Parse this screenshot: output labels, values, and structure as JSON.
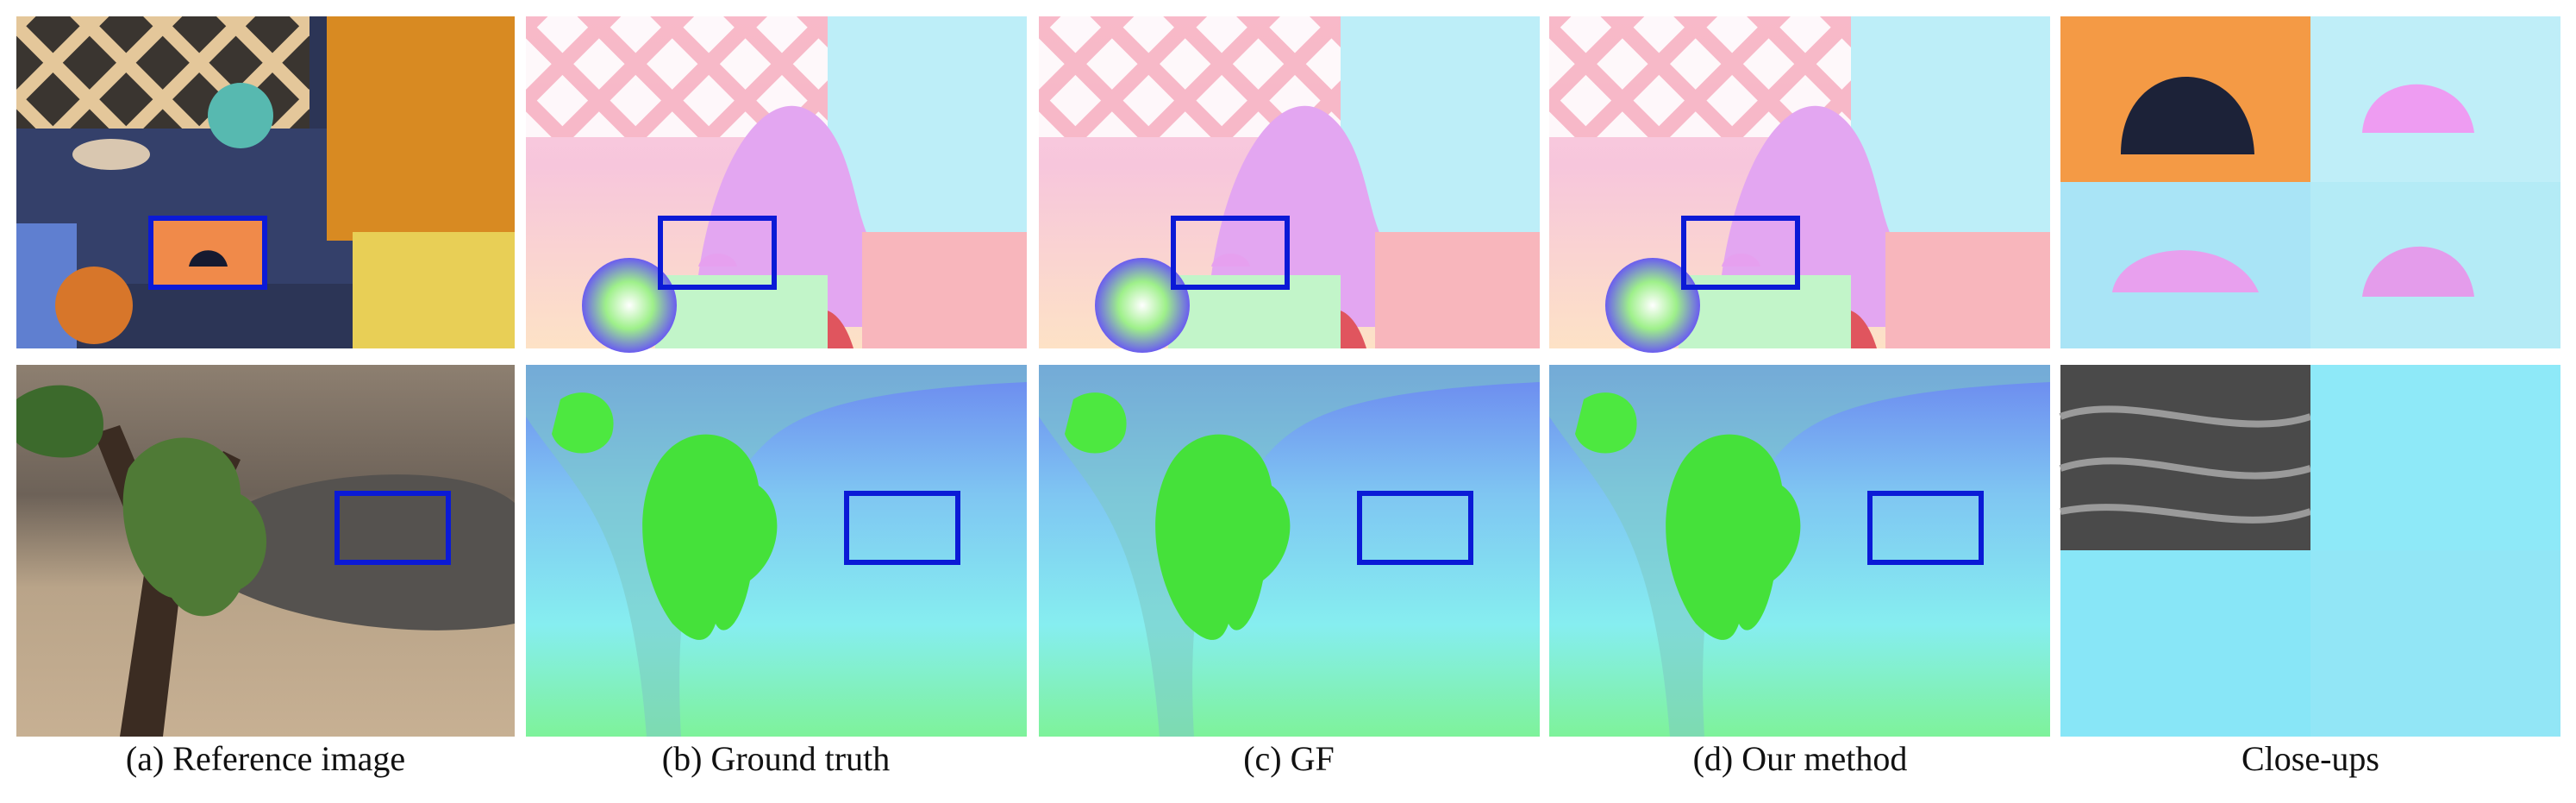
{
  "captions": [
    "(a) Reference image",
    "(b) Ground truth",
    "(c) GF",
    "(d) Our method",
    "Close-ups"
  ]
}
